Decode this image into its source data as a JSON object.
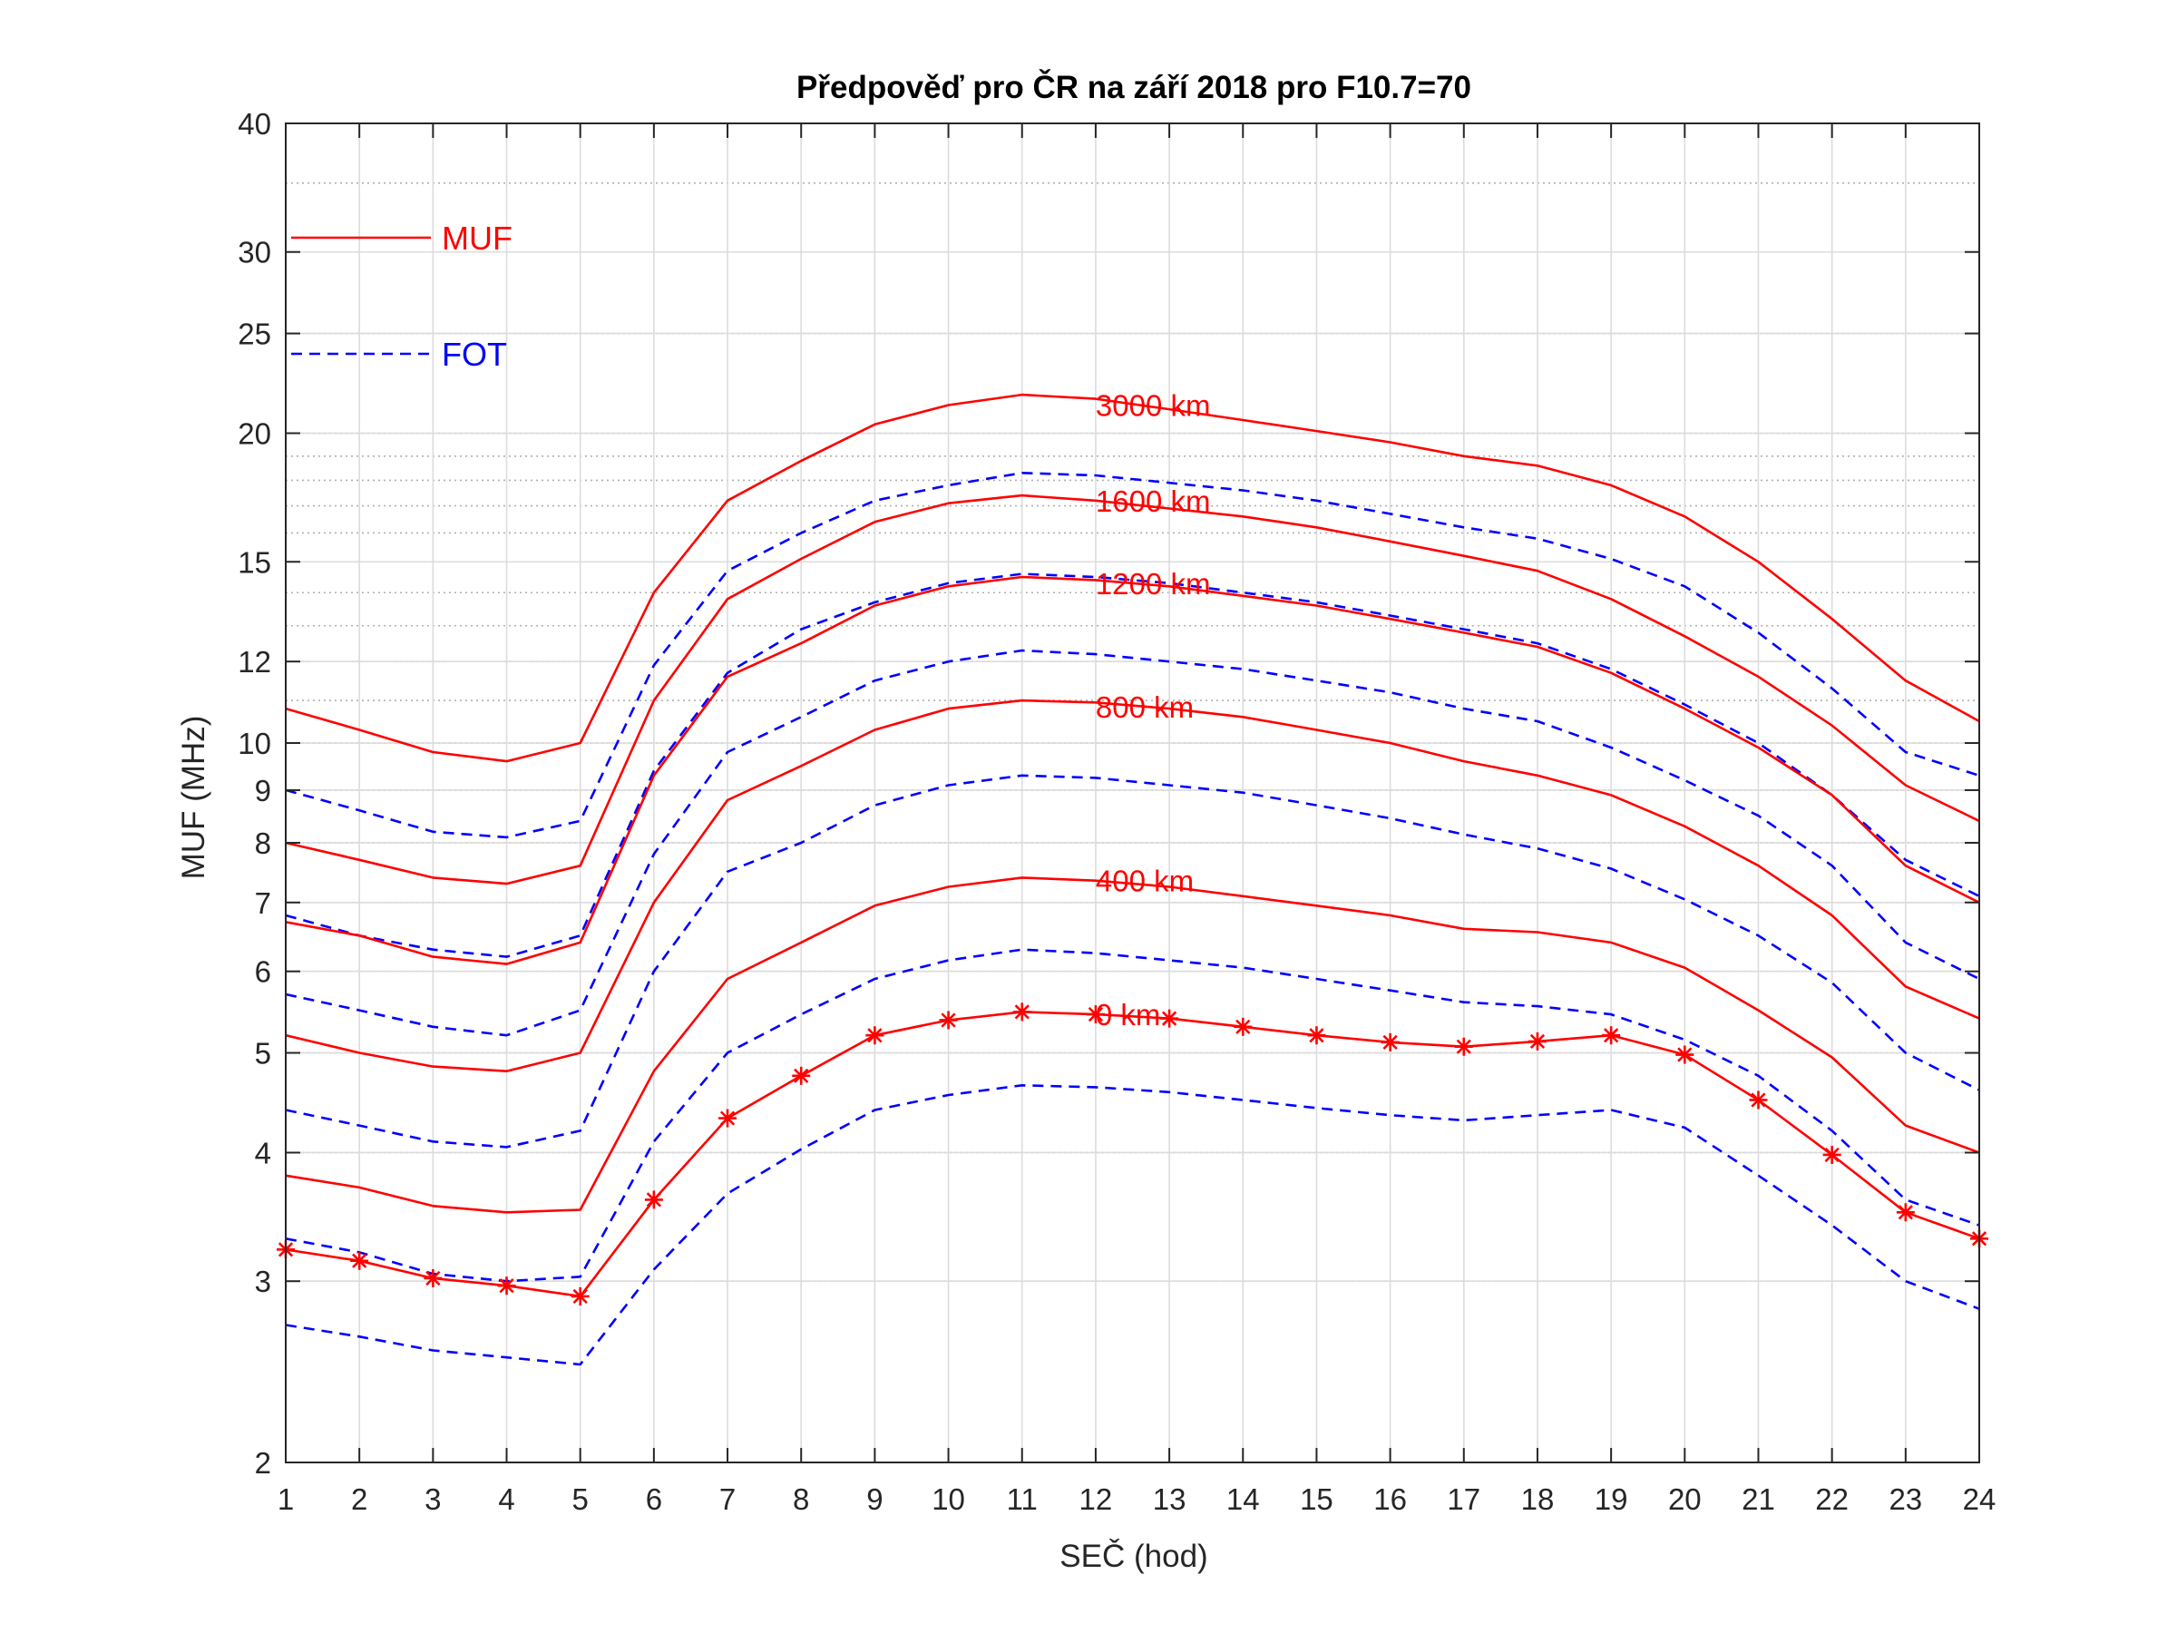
{
  "chart_data": {
    "type": "line",
    "title": "Předpověď pro ČR na září 2018 pro F10.7=70",
    "xlabel": "SEČ (hod)",
    "ylabel": "MUF (MHz)",
    "x": [
      1,
      2,
      3,
      4,
      5,
      6,
      7,
      8,
      9,
      10,
      11,
      12,
      13,
      14,
      15,
      16,
      17,
      18,
      19,
      20,
      21,
      22,
      23,
      24
    ],
    "xlim": [
      1,
      24
    ],
    "ylim": [
      2,
      40
    ],
    "yscale": "log",
    "grid": true,
    "minor_grid": true,
    "y_tick_values": [
      2,
      3,
      4,
      5,
      6,
      7,
      8,
      9,
      10,
      12,
      15,
      20,
      25,
      30,
      40
    ],
    "y_tick_labels": [
      "2",
      "3",
      "4",
      "5",
      "6",
      "7",
      "8",
      "9",
      "10",
      "12",
      "15",
      "20",
      "25",
      "30",
      "40"
    ],
    "legend": {
      "position": "top-left",
      "entries": [
        {
          "label": "MUF",
          "color": "#ff0000",
          "style": "solid"
        },
        {
          "label": "FOT",
          "color": "#0000ff",
          "style": "dashed"
        }
      ]
    },
    "curve_labels": [
      {
        "text": "3000 km",
        "x": 12,
        "y": 21.3
      },
      {
        "text": "1600 km",
        "x": 12,
        "y": 17.2
      },
      {
        "text": "1200 km",
        "x": 12,
        "y": 14.3
      },
      {
        "text": "800 km",
        "x": 12,
        "y": 10.85
      },
      {
        "text": "400 km",
        "x": 12,
        "y": 7.35
      },
      {
        "text": "0 km",
        "x": 12,
        "y": 5.45
      }
    ],
    "series": [
      {
        "kind": "MUF",
        "distance": "3000 km",
        "color": "#ff0000",
        "style": "solid",
        "values": [
          10.8,
          10.3,
          9.8,
          9.6,
          10.0,
          14.0,
          17.2,
          18.8,
          20.4,
          21.3,
          21.8,
          21.6,
          21.1,
          20.6,
          20.1,
          19.6,
          19.0,
          18.6,
          17.8,
          16.6,
          15.0,
          13.2,
          11.5,
          10.5
        ]
      },
      {
        "kind": "FOT",
        "distance": "3000 km",
        "color": "#0000ff",
        "style": "dashed",
        "values": [
          9.0,
          8.6,
          8.2,
          8.1,
          8.4,
          11.9,
          14.7,
          16.0,
          17.2,
          17.8,
          18.3,
          18.2,
          17.9,
          17.6,
          17.2,
          16.7,
          16.2,
          15.8,
          15.1,
          14.2,
          12.8,
          11.3,
          9.8,
          9.3
        ]
      },
      {
        "kind": "MUF",
        "distance": "1600 km",
        "color": "#ff0000",
        "style": "solid",
        "values": [
          8.0,
          7.7,
          7.4,
          7.3,
          7.6,
          11.0,
          13.8,
          15.1,
          16.4,
          17.1,
          17.4,
          17.2,
          16.9,
          16.6,
          16.2,
          15.7,
          15.2,
          14.7,
          13.8,
          12.7,
          11.6,
          10.4,
          9.1,
          8.4
        ]
      },
      {
        "kind": "FOT",
        "distance": "1600 km",
        "color": "#0000ff",
        "style": "dashed",
        "values": [
          6.8,
          6.5,
          6.3,
          6.2,
          6.5,
          9.4,
          11.7,
          12.9,
          13.7,
          14.3,
          14.6,
          14.5,
          14.3,
          14.0,
          13.7,
          13.3,
          12.9,
          12.5,
          11.8,
          10.9,
          10.0,
          8.9,
          7.7,
          7.1
        ]
      },
      {
        "kind": "MUF",
        "distance": "1200 km",
        "color": "#ff0000",
        "style": "solid",
        "values": [
          6.7,
          6.5,
          6.2,
          6.1,
          6.4,
          9.3,
          11.6,
          12.5,
          13.6,
          14.2,
          14.5,
          14.4,
          14.2,
          13.9,
          13.6,
          13.2,
          12.8,
          12.4,
          11.7,
          10.8,
          9.9,
          8.9,
          7.6,
          7.0
        ]
      },
      {
        "kind": "FOT",
        "distance": "1200 km",
        "color": "#0000ff",
        "style": "dashed",
        "values": [
          5.7,
          5.5,
          5.3,
          5.2,
          5.5,
          7.8,
          9.8,
          10.6,
          11.5,
          12.0,
          12.3,
          12.2,
          12.0,
          11.8,
          11.5,
          11.2,
          10.8,
          10.5,
          9.9,
          9.2,
          8.5,
          7.6,
          6.4,
          5.9
        ]
      },
      {
        "kind": "MUF",
        "distance": "800 km",
        "color": "#ff0000",
        "style": "solid",
        "values": [
          5.2,
          5.0,
          4.85,
          4.8,
          5.0,
          7.0,
          8.8,
          9.5,
          10.3,
          10.8,
          11.0,
          10.95,
          10.8,
          10.6,
          10.3,
          10.0,
          9.6,
          9.3,
          8.9,
          8.3,
          7.6,
          6.8,
          5.8,
          5.4
        ]
      },
      {
        "kind": "FOT",
        "distance": "800 km",
        "color": "#0000ff",
        "style": "dashed",
        "values": [
          4.4,
          4.25,
          4.1,
          4.05,
          4.2,
          6.0,
          7.5,
          8.0,
          8.7,
          9.1,
          9.3,
          9.25,
          9.1,
          8.95,
          8.7,
          8.45,
          8.15,
          7.9,
          7.55,
          7.05,
          6.5,
          5.85,
          5.0,
          4.6
        ]
      },
      {
        "kind": "MUF",
        "distance": "400 km",
        "color": "#ff0000",
        "style": "solid",
        "values": [
          3.8,
          3.7,
          3.55,
          3.5,
          3.52,
          4.8,
          5.9,
          6.4,
          6.95,
          7.25,
          7.4,
          7.35,
          7.25,
          7.1,
          6.95,
          6.8,
          6.6,
          6.55,
          6.4,
          6.05,
          5.5,
          4.95,
          4.25,
          4.0
        ]
      },
      {
        "kind": "FOT",
        "distance": "400 km",
        "color": "#0000ff",
        "style": "dashed",
        "values": [
          3.3,
          3.2,
          3.05,
          3.0,
          3.03,
          4.1,
          5.0,
          5.45,
          5.9,
          6.15,
          6.3,
          6.25,
          6.15,
          6.05,
          5.9,
          5.75,
          5.6,
          5.55,
          5.45,
          5.15,
          4.75,
          4.2,
          3.6,
          3.4
        ]
      },
      {
        "kind": "MUF",
        "distance": "0 km",
        "color": "#ff0000",
        "style": "solid",
        "marker": "asterisk",
        "values": [
          3.22,
          3.14,
          3.02,
          2.97,
          2.9,
          3.6,
          4.32,
          4.75,
          5.2,
          5.38,
          5.48,
          5.45,
          5.4,
          5.3,
          5.2,
          5.12,
          5.07,
          5.13,
          5.2,
          4.98,
          4.5,
          3.98,
          3.5,
          3.3
        ]
      },
      {
        "kind": "FOT",
        "distance": "0 km",
        "color": "#0000ff",
        "style": "dashed",
        "values": [
          2.72,
          2.65,
          2.57,
          2.53,
          2.49,
          3.08,
          3.65,
          4.03,
          4.4,
          4.55,
          4.65,
          4.63,
          4.58,
          4.5,
          4.42,
          4.35,
          4.3,
          4.35,
          4.4,
          4.23,
          3.8,
          3.4,
          3.0,
          2.82
        ]
      }
    ]
  }
}
